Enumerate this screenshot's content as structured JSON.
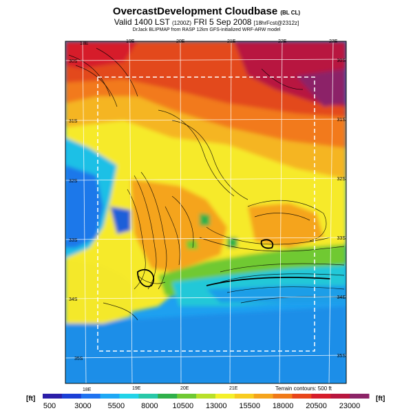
{
  "title": {
    "main": "OvercastDevelopment Cloudbase",
    "main_suffix": "(BL CL)",
    "valid_prefix": "Valid 1400 LST",
    "valid_utc": "(1200Z)",
    "valid_date": "FRI 5 Sep 2008",
    "valid_suffix": "[18hrFcst@2312z]",
    "credit": "DrJack BLIPMAP from RASP 12km GFS-initialized WRF-ARW model"
  },
  "map": {
    "lon_labels_top": [
      "18E",
      "19E",
      "20E",
      "21E",
      "22E",
      "23E"
    ],
    "lon_labels_bottom": [
      "18E",
      "19E",
      "20E",
      "21E"
    ],
    "lat_labels_left": [
      "30S",
      "31S",
      "32S",
      "33S",
      "34S",
      "35S"
    ],
    "lat_labels_right": [
      "30S",
      "31S",
      "32S",
      "33S",
      "34S",
      "35S"
    ],
    "terrain_note": "Terrain contours: 500 ft"
  },
  "colorbar": {
    "unit_left": "[ft]",
    "unit_right": "[ft]",
    "ticks": [
      "500",
      "3000",
      "5500",
      "8000",
      "10500",
      "13000",
      "15500",
      "18000",
      "20500",
      "23000"
    ],
    "colors": [
      "#2b1ea8",
      "#1b3fd6",
      "#1f73f0",
      "#1ea8f5",
      "#22d3e8",
      "#28c8a8",
      "#2fb04a",
      "#6fc933",
      "#b8e02a",
      "#f4f02a",
      "#f8cc20",
      "#f5a41c",
      "#f07a18",
      "#e8451a",
      "#d61d2a",
      "#b8163f",
      "#8c2467"
    ]
  }
}
